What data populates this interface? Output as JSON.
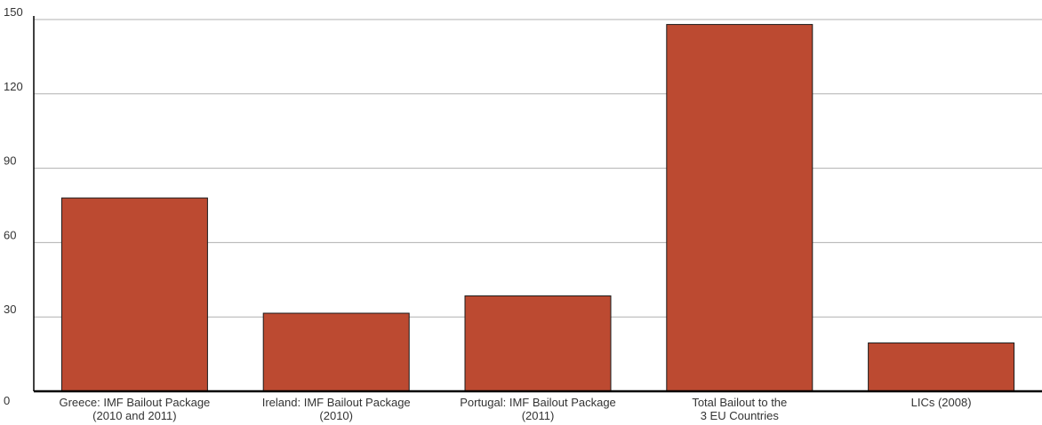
{
  "chart_data": {
    "type": "bar",
    "categories": [
      [
        "Greece: IMF Bailout Package",
        "(2010 and 2011)"
      ],
      [
        "Ireland: IMF Bailout Package",
        "(2010)"
      ],
      [
        "Portugal: IMF Bailout Package",
        "(2011)"
      ],
      [
        "Total Bailout to the",
        "3 EU Countries"
      ],
      [
        "LICs (2008)"
      ]
    ],
    "values": [
      78,
      31.5,
      38.5,
      148,
      19.5
    ],
    "yticks": [
      "0",
      "30",
      "60",
      "90",
      "120",
      "150"
    ],
    "ylim": [
      0,
      150
    ],
    "grid": true,
    "colors": {
      "bar": "#bc4a31",
      "bar_edge": "#1a1a1a",
      "grid": "#b0b0b0",
      "axis": "#000000"
    }
  }
}
